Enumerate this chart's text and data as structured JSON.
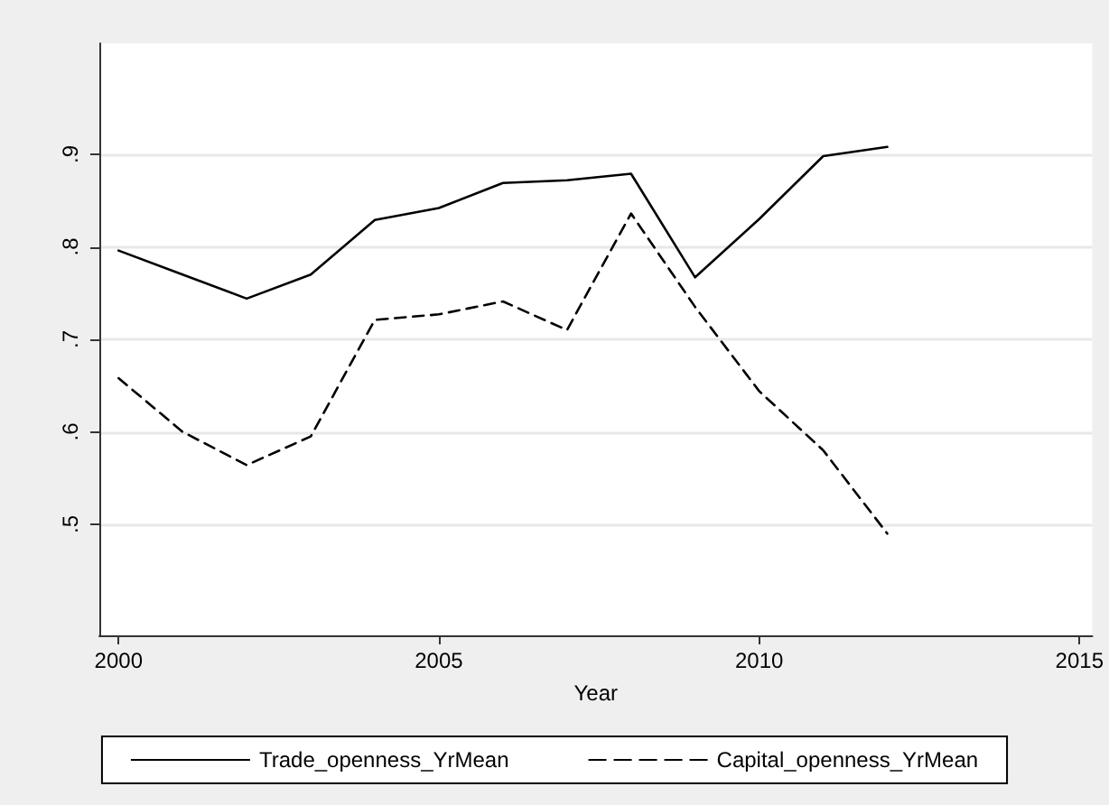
{
  "chart_data": {
    "type": "line",
    "xlabel": "Year",
    "x": [
      2000,
      2001,
      2002,
      2003,
      2004,
      2005,
      2006,
      2007,
      2008,
      2009,
      2010,
      2011,
      2012
    ],
    "series": [
      {
        "name": "Trade_openness_YrMean",
        "color": "#000000",
        "line_style": "solid",
        "values": [
          0.796,
          0.77,
          0.744,
          0.77,
          0.829,
          0.842,
          0.869,
          0.872,
          0.879,
          0.767,
          0.83,
          0.898,
          0.908
        ]
      },
      {
        "name": "Capital_openness_YrMean",
        "color": "#000000",
        "line_style": "dashed",
        "values": [
          0.658,
          0.6,
          0.564,
          0.595,
          0.721,
          0.727,
          0.741,
          0.71,
          0.836,
          0.735,
          0.644,
          0.58,
          0.49
        ]
      }
    ],
    "xlim": [
      1999.7,
      2015.2
    ],
    "xticks": [
      2000,
      2005,
      2010,
      2015
    ],
    "ylim": [
      0.38,
      1.02
    ],
    "yticks": [
      {
        "value": 0.5,
        "label": ".5"
      },
      {
        "value": 0.6,
        "label": ".6"
      },
      {
        "value": 0.7,
        "label": ".7"
      },
      {
        "value": 0.8,
        "label": ".8"
      },
      {
        "value": 0.9,
        "label": ".9"
      }
    ],
    "grid": "y",
    "legend": "bottom",
    "marker": "none"
  }
}
